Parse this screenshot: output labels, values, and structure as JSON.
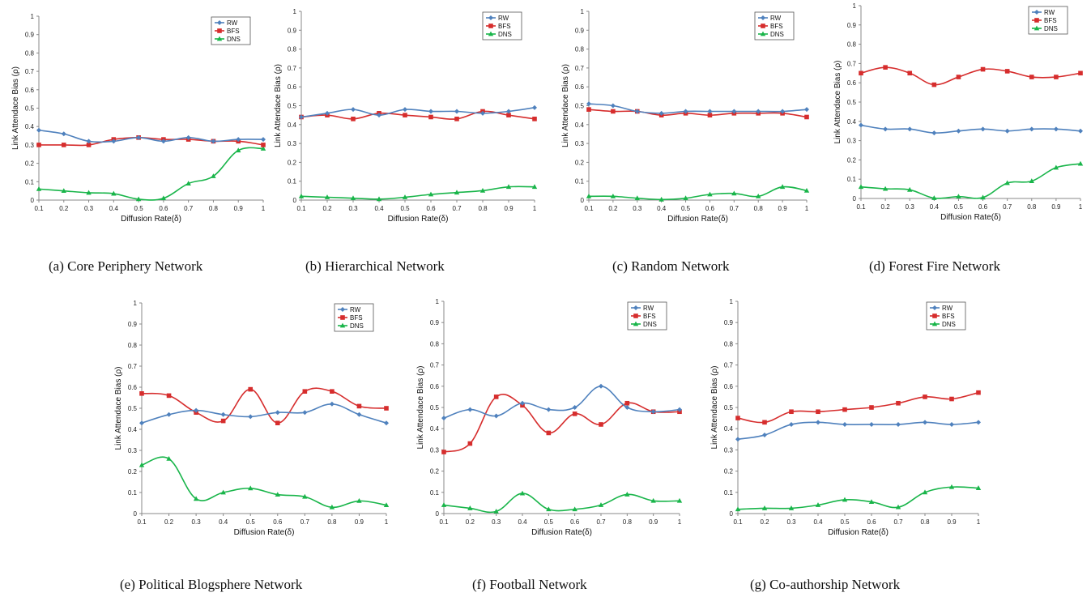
{
  "colors": {
    "RW": "#4f81bd",
    "BFS": "#d62d2d",
    "DNS": "#19b54a"
  },
  "chart_data": [
    {
      "type": "line",
      "caption": "(a) Core Periphery Network",
      "xlabel": "Diffusion Rate(δ)",
      "ylabel": "Link Attendace Bias (ρ)",
      "xlim": [
        0.1,
        1
      ],
      "ylim": [
        0,
        1
      ],
      "x": [
        0.1,
        0.2,
        0.3,
        0.4,
        0.5,
        0.6,
        0.7,
        0.8,
        0.9,
        1
      ],
      "x_ticks": [
        "0.1",
        "0.2",
        "0.3",
        "0.4",
        "0.5",
        "0.6",
        "0.7",
        "0.8",
        "0.9",
        "1"
      ],
      "y_ticks": [
        "0",
        "0.1",
        "0.2",
        "0.3",
        "0.4",
        "0.5",
        "0.6",
        "0.7",
        "0.8",
        "0.9",
        "1"
      ],
      "legend": "top-right",
      "series": [
        {
          "name": "RW",
          "values": [
            0.38,
            0.36,
            0.32,
            0.32,
            0.34,
            0.32,
            0.34,
            0.32,
            0.33,
            0.33
          ]
        },
        {
          "name": "BFS",
          "values": [
            0.3,
            0.3,
            0.3,
            0.33,
            0.34,
            0.33,
            0.33,
            0.32,
            0.32,
            0.3
          ]
        },
        {
          "name": "DNS",
          "values": [
            0.06,
            0.05,
            0.04,
            0.035,
            0.005,
            0.01,
            0.09,
            0.13,
            0.27,
            0.28
          ]
        }
      ]
    },
    {
      "type": "line",
      "caption": "(b) Hierarchical Network",
      "xlabel": "Diffusion Rate(δ)",
      "ylabel": "Link Attendace Bias (ρ)",
      "xlim": [
        0.1,
        1
      ],
      "ylim": [
        0,
        1
      ],
      "x": [
        0.1,
        0.2,
        0.3,
        0.4,
        0.5,
        0.6,
        0.7,
        0.8,
        0.9,
        1
      ],
      "x_ticks": [
        "0.1",
        "0.2",
        "0.3",
        "0.4",
        "0.5",
        "0.6",
        "0.7",
        "0.8",
        "0.9",
        "1"
      ],
      "y_ticks": [
        "0",
        "0.1",
        "0.2",
        "0.3",
        "0.4",
        "0.5",
        "0.6",
        "0.7",
        "0.8",
        "0.9",
        "1"
      ],
      "legend": "top-right",
      "series": [
        {
          "name": "RW",
          "values": [
            0.44,
            0.46,
            0.48,
            0.45,
            0.48,
            0.47,
            0.47,
            0.46,
            0.47,
            0.49
          ]
        },
        {
          "name": "BFS",
          "values": [
            0.44,
            0.45,
            0.43,
            0.46,
            0.45,
            0.44,
            0.43,
            0.47,
            0.45,
            0.43
          ]
        },
        {
          "name": "DNS",
          "values": [
            0.02,
            0.015,
            0.01,
            0.005,
            0.015,
            0.03,
            0.04,
            0.05,
            0.07,
            0.07
          ]
        }
      ]
    },
    {
      "type": "line",
      "caption": "(c) Random Network",
      "xlabel": "Diffusion Rate(δ)",
      "ylabel": "Link Attendace Bias (ρ)",
      "xlim": [
        0.1,
        1
      ],
      "ylim": [
        0,
        1
      ],
      "x": [
        0.1,
        0.2,
        0.3,
        0.4,
        0.5,
        0.6,
        0.7,
        0.8,
        0.9,
        1
      ],
      "x_ticks": [
        "0.1",
        "0.2",
        "0.3",
        "0.4",
        "0.5",
        "0.6",
        "0.7",
        "0.8",
        "0.9",
        "1"
      ],
      "y_ticks": [
        "0",
        "0.1",
        "0.2",
        "0.3",
        "0.4",
        "0.5",
        "0.6",
        "0.7",
        "0.8",
        "0.9",
        "1"
      ],
      "legend": "top-right",
      "series": [
        {
          "name": "RW",
          "values": [
            0.51,
            0.5,
            0.47,
            0.46,
            0.47,
            0.47,
            0.47,
            0.47,
            0.47,
            0.48
          ]
        },
        {
          "name": "BFS",
          "values": [
            0.48,
            0.47,
            0.47,
            0.45,
            0.46,
            0.45,
            0.46,
            0.46,
            0.46,
            0.44
          ]
        },
        {
          "name": "DNS",
          "values": [
            0.02,
            0.02,
            0.01,
            0.003,
            0.01,
            0.03,
            0.035,
            0.02,
            0.07,
            0.05
          ]
        }
      ]
    },
    {
      "type": "line",
      "caption": "(d) Forest Fire Network",
      "xlabel": "Diffusion Rate(δ)",
      "ylabel": "Link Attendace Bias (ρ)",
      "xlim": [
        0.1,
        1
      ],
      "ylim": [
        0,
        1
      ],
      "x": [
        0.1,
        0.2,
        0.3,
        0.4,
        0.5,
        0.6,
        0.7,
        0.8,
        0.9,
        1
      ],
      "x_ticks": [
        "0.1",
        "0.2",
        "0.3",
        "0.4",
        "0.5",
        "0.6",
        "0.7",
        "0.8",
        "0.9",
        "1"
      ],
      "y_ticks": [
        "0",
        "0.1",
        "0.2",
        "0.3",
        "0.4",
        "0.5",
        "0.6",
        "0.7",
        "0.8",
        "0.9",
        "1"
      ],
      "legend": "top-right",
      "series": [
        {
          "name": "RW",
          "values": [
            0.38,
            0.36,
            0.36,
            0.34,
            0.35,
            0.36,
            0.35,
            0.36,
            0.36,
            0.35
          ]
        },
        {
          "name": "BFS",
          "values": [
            0.65,
            0.68,
            0.65,
            0.59,
            0.63,
            0.67,
            0.66,
            0.63,
            0.63,
            0.65
          ]
        },
        {
          "name": "DNS",
          "values": [
            0.06,
            0.05,
            0.045,
            0.002,
            0.01,
            0.005,
            0.08,
            0.09,
            0.16,
            0.18
          ]
        }
      ]
    },
    {
      "type": "line",
      "caption": "(e) Political Blogsphere Network",
      "xlabel": "Diffusion Rate(δ)",
      "ylabel": "Link Attendace Bias (ρ)",
      "xlim": [
        0.1,
        1
      ],
      "ylim": [
        0,
        1
      ],
      "x": [
        0.1,
        0.2,
        0.3,
        0.4,
        0.5,
        0.6,
        0.7,
        0.8,
        0.9,
        1
      ],
      "x_ticks": [
        "0.1",
        "0.2",
        "0.3",
        "0.4",
        "0.5",
        "0.6",
        "0.7",
        "0.8",
        "0.9",
        "1"
      ],
      "y_ticks": [
        "0",
        "0.1",
        "0.2",
        "0.3",
        "0.4",
        "0.5",
        "0.6",
        "0.7",
        "0.8",
        "0.9",
        "1"
      ],
      "legend": "top-right",
      "series": [
        {
          "name": "RW",
          "values": [
            0.43,
            0.47,
            0.49,
            0.47,
            0.46,
            0.48,
            0.48,
            0.52,
            0.47,
            0.43
          ]
        },
        {
          "name": "BFS",
          "values": [
            0.57,
            0.56,
            0.48,
            0.44,
            0.59,
            0.43,
            0.58,
            0.58,
            0.51,
            0.5
          ]
        },
        {
          "name": "DNS",
          "values": [
            0.23,
            0.26,
            0.07,
            0.1,
            0.12,
            0.09,
            0.08,
            0.03,
            0.06,
            0.04
          ]
        }
      ]
    },
    {
      "type": "line",
      "caption": "(f) Football Network",
      "xlabel": "Diffusion Rate(δ)",
      "ylabel": "Link Attendace Bias (ρ)",
      "xlim": [
        0.1,
        1
      ],
      "ylim": [
        0,
        1
      ],
      "x": [
        0.1,
        0.2,
        0.3,
        0.4,
        0.5,
        0.6,
        0.7,
        0.8,
        0.9,
        1
      ],
      "x_ticks": [
        "0.1",
        "0.2",
        "0.3",
        "0.4",
        "0.5",
        "0.6",
        "0.7",
        "0.8",
        "0.9",
        "1"
      ],
      "y_ticks": [
        "0",
        "0.1",
        "0.2",
        "0.3",
        "0.4",
        "0.5",
        "0.6",
        "0.7",
        "0.8",
        "0.9",
        "1"
      ],
      "legend": "top-right",
      "series": [
        {
          "name": "RW",
          "values": [
            0.45,
            0.49,
            0.46,
            0.52,
            0.49,
            0.5,
            0.6,
            0.5,
            0.48,
            0.49
          ]
        },
        {
          "name": "BFS",
          "values": [
            0.29,
            0.33,
            0.55,
            0.51,
            0.38,
            0.47,
            0.42,
            0.52,
            0.48,
            0.48
          ]
        },
        {
          "name": "DNS",
          "values": [
            0.04,
            0.025,
            0.01,
            0.095,
            0.02,
            0.02,
            0.04,
            0.09,
            0.06,
            0.06
          ]
        }
      ]
    },
    {
      "type": "line",
      "caption": "(g) Co-authorship Network",
      "xlabel": "Diffusion Rate(δ)",
      "ylabel": "Link Attendace Bias (ρ)",
      "xlim": [
        0.1,
        1
      ],
      "ylim": [
        0,
        1
      ],
      "x": [
        0.1,
        0.2,
        0.3,
        0.4,
        0.5,
        0.6,
        0.7,
        0.8,
        0.9,
        1
      ],
      "x_ticks": [
        "0.1",
        "0.2",
        "0.3",
        "0.4",
        "0.5",
        "0.6",
        "0.7",
        "0.8",
        "0.9",
        "1"
      ],
      "y_ticks": [
        "0",
        "0.1",
        "0.2",
        "0.3",
        "0.4",
        "0.5",
        "0.6",
        "0.7",
        "0.8",
        "0.9",
        "1"
      ],
      "legend": "top-right",
      "series": [
        {
          "name": "RW",
          "values": [
            0.35,
            0.37,
            0.42,
            0.43,
            0.42,
            0.42,
            0.42,
            0.43,
            0.42,
            0.43
          ]
        },
        {
          "name": "BFS",
          "values": [
            0.45,
            0.43,
            0.48,
            0.48,
            0.49,
            0.5,
            0.52,
            0.55,
            0.54,
            0.57
          ]
        },
        {
          "name": "DNS",
          "values": [
            0.02,
            0.025,
            0.025,
            0.04,
            0.065,
            0.055,
            0.03,
            0.1,
            0.125,
            0.12
          ]
        }
      ]
    }
  ]
}
